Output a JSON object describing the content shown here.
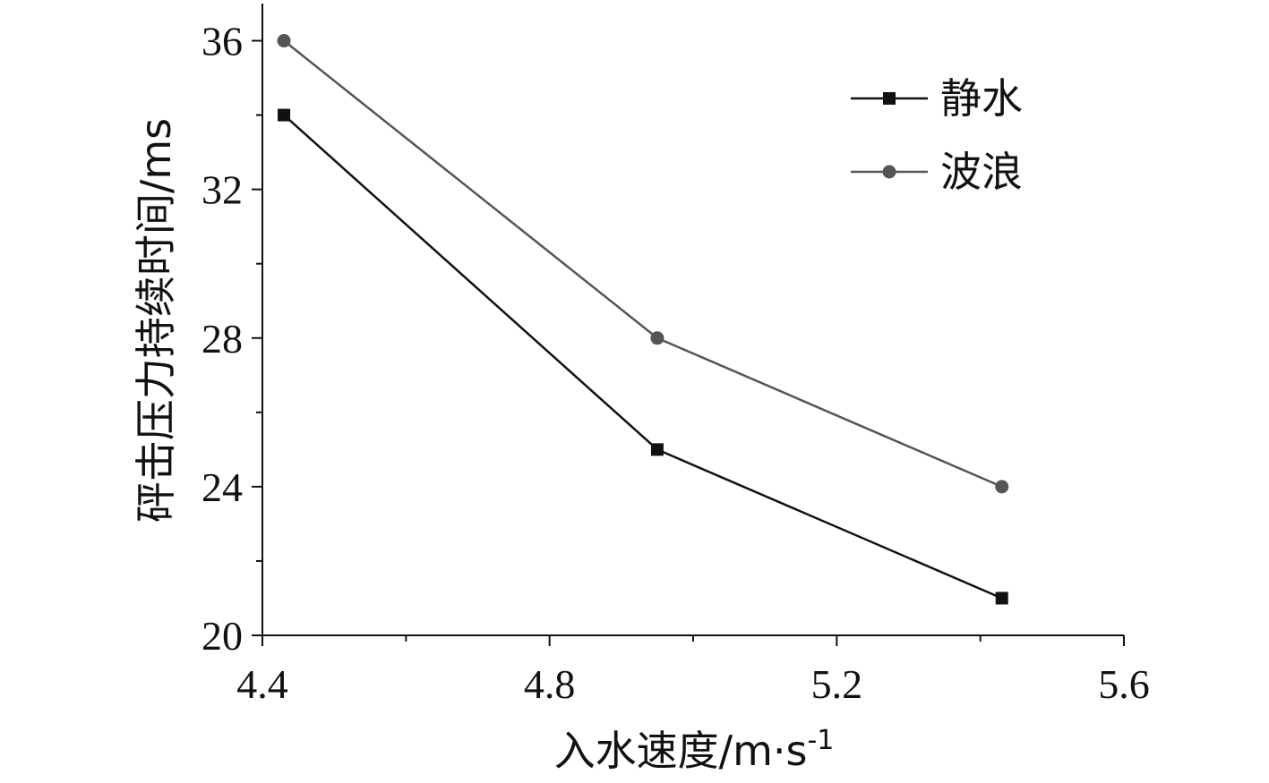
{
  "chart_data": {
    "type": "line",
    "xlabel": "入水速度/m·s",
    "xlabel_sup": "-1",
    "ylabel": "砰击压力持续时间/ms",
    "xlim": [
      4.4,
      5.6
    ],
    "ylim": [
      20,
      37
    ],
    "xticks": [
      "4.4",
      "4.8",
      "5.2",
      "5.6"
    ],
    "yticks": [
      "20",
      "24",
      "28",
      "32",
      "36"
    ],
    "x": [
      4.43,
      4.95,
      5.43
    ],
    "series": [
      {
        "name": "静水",
        "values": [
          34,
          25,
          21
        ],
        "color": "#111111",
        "marker": "square"
      },
      {
        "name": "波浪",
        "values": [
          36,
          28,
          24
        ],
        "color": "#555555",
        "marker": "circle"
      }
    ],
    "legend": "top-right",
    "grid": false
  }
}
